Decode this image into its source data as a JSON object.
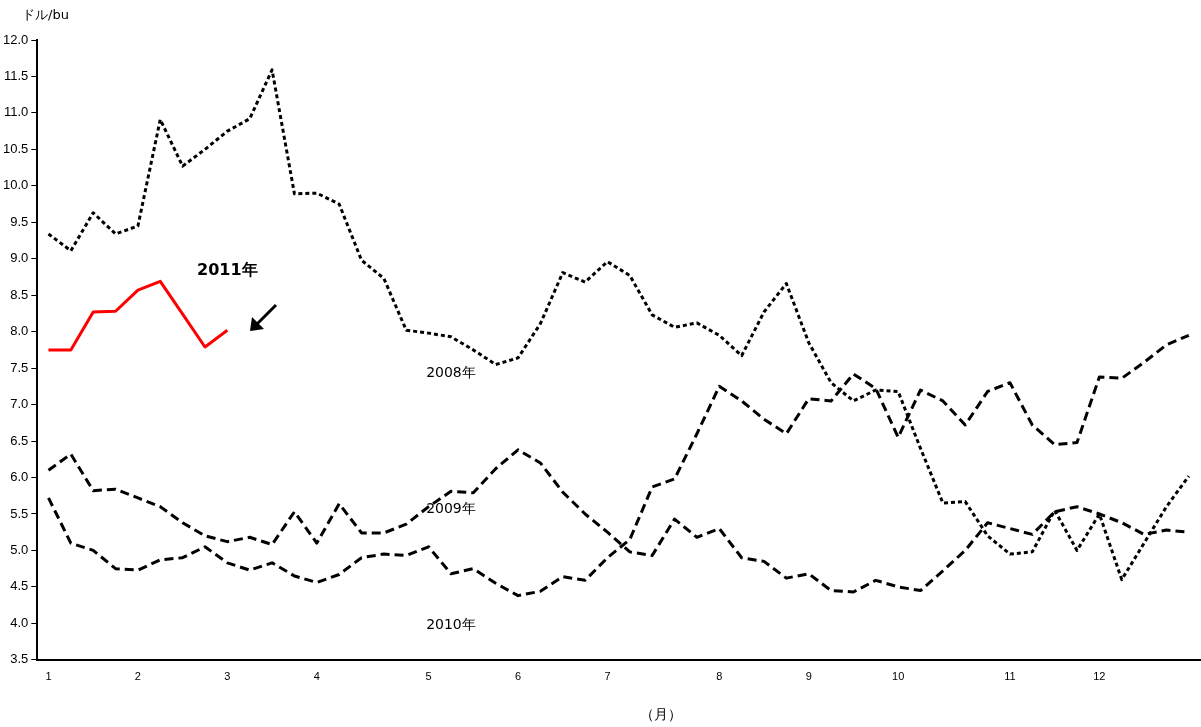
{
  "chart_data": {
    "type": "line",
    "ylabel": "ドル/bu",
    "xlabel": "（月）",
    "categories": [
      "1",
      null,
      null,
      null,
      "2",
      null,
      null,
      null,
      "3",
      null,
      null,
      null,
      "4",
      null,
      null,
      null,
      null,
      "5",
      null,
      null,
      null,
      "6",
      null,
      null,
      null,
      "7",
      null,
      null,
      null,
      null,
      "8",
      null,
      null,
      null,
      "9",
      null,
      null,
      null,
      "10",
      null,
      null,
      null,
      null,
      "11",
      null,
      null,
      null,
      "12",
      null,
      null,
      null,
      null
    ],
    "series": [
      {
        "name": "2008年",
        "color": "#000000",
        "line_style": "dotted",
        "values": [
          9.34,
          9.11,
          9.63,
          9.34,
          9.45,
          10.91,
          10.27,
          10.5,
          10.75,
          10.92,
          11.59,
          9.89,
          9.9,
          9.75,
          8.98,
          8.73,
          8.02,
          7.98,
          7.93,
          7.75,
          7.55,
          7.64,
          8.11,
          8.81,
          8.68,
          8.96,
          8.77,
          8.23,
          8.06,
          8.12,
          7.95,
          7.67,
          8.27,
          8.66,
          7.85,
          7.3,
          7.05,
          7.2,
          7.18,
          6.4,
          5.65,
          5.67,
          5.2,
          4.95,
          4.98,
          5.55,
          5.0,
          5.5,
          4.6,
          5.1,
          5.6,
          6.02
        ]
      },
      {
        "name": "2009年",
        "color": "#000000",
        "line_style": "dashed",
        "values": [
          6.1,
          6.32,
          5.82,
          5.84,
          5.72,
          5.6,
          5.38,
          5.2,
          5.12,
          5.18,
          5.08,
          5.53,
          5.1,
          5.64,
          5.24,
          5.24,
          5.36,
          5.6,
          5.81,
          5.79,
          6.12,
          6.38,
          6.2,
          5.8,
          5.5,
          5.25,
          4.98,
          4.93,
          5.43,
          5.18,
          5.3,
          4.9,
          4.85,
          4.62,
          4.68,
          4.45,
          4.43,
          4.59,
          4.5,
          4.45,
          4.72,
          5.0,
          5.38,
          5.3,
          5.22,
          5.53,
          5.6,
          5.5,
          5.38,
          5.22,
          5.28,
          5.25
        ]
      },
      {
        "name": "2010年",
        "color": "#000000",
        "line_style": "dashed",
        "values": [
          5.72,
          5.1,
          5.0,
          4.75,
          4.73,
          4.87,
          4.9,
          5.05,
          4.83,
          4.73,
          4.83,
          4.65,
          4.56,
          4.67,
          4.9,
          4.95,
          4.93,
          5.05,
          4.68,
          4.75,
          4.55,
          4.38,
          4.44,
          4.64,
          4.59,
          4.9,
          5.15,
          5.87,
          5.98,
          6.6,
          7.25,
          7.05,
          6.8,
          6.6,
          7.08,
          7.05,
          7.42,
          7.22,
          6.55,
          7.2,
          7.05,
          6.72,
          7.18,
          7.3,
          6.72,
          6.45,
          6.48,
          7.38,
          7.36,
          7.58,
          7.82,
          7.95
        ]
      },
      {
        "name": "2011年",
        "color": "#ff0000",
        "line_style": "solid",
        "values": [
          7.75,
          7.75,
          8.27,
          8.28,
          8.57,
          8.69,
          8.24,
          7.79,
          8.02,
          null,
          null,
          null,
          null,
          null,
          null,
          null,
          null,
          null,
          null,
          null,
          null,
          null,
          null,
          null,
          null,
          null,
          null,
          null,
          null,
          null,
          null,
          null,
          null,
          null,
          null,
          null,
          null,
          null,
          null,
          null,
          null,
          null,
          null,
          null,
          null,
          null,
          null,
          null,
          null,
          null,
          null,
          null
        ]
      }
    ],
    "ylim": [
      3.5,
      12
    ],
    "yticks": [
      3.5,
      {
        "value": 4,
        "label": "4.0"
      },
      4.5,
      {
        "value": 5,
        "label": "5.0"
      },
      5.5,
      {
        "value": 6,
        "label": "6.0"
      },
      6.5,
      {
        "value": 7,
        "label": "7.0"
      },
      7.5,
      {
        "value": 8,
        "label": "8.0"
      },
      8.5,
      {
        "value": 9,
        "label": "9.0"
      },
      9.5,
      {
        "value": 10,
        "label": "10.0"
      },
      10.5,
      {
        "value": 11,
        "label": "11.0"
      },
      11.5,
      {
        "value": 12,
        "label": "12.0"
      }
    ],
    "grid": false,
    "legend": false,
    "marker": "none"
  }
}
